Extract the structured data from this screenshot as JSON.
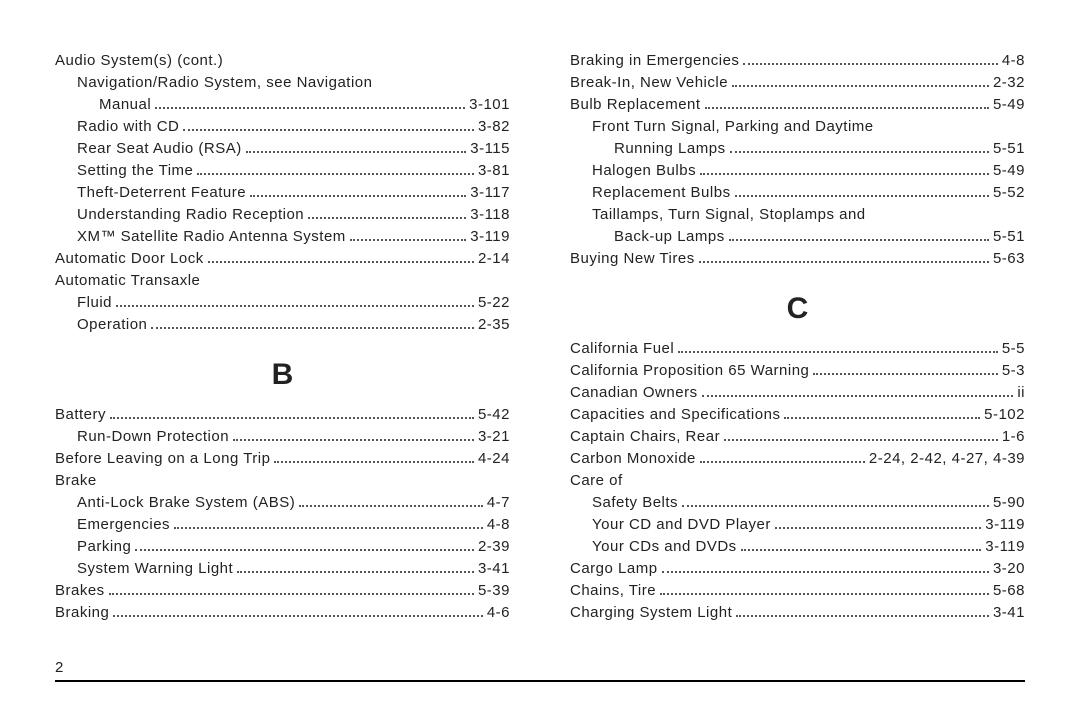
{
  "page_number": "2",
  "left": {
    "entries": [
      {
        "label": "Audio System(s) (cont.)",
        "page": "",
        "indent": 0
      },
      {
        "label": "Navigation/Radio System, see Navigation",
        "page": "",
        "indent": 1
      },
      {
        "label": "Manual",
        "page": "3-101",
        "indent": 2
      },
      {
        "label": "Radio with CD",
        "page": "3-82",
        "indent": 1
      },
      {
        "label": "Rear Seat Audio (RSA)",
        "page": "3-115",
        "indent": 1
      },
      {
        "label": "Setting the Time",
        "page": "3-81",
        "indent": 1
      },
      {
        "label": "Theft-Deterrent Feature",
        "page": "3-117",
        "indent": 1
      },
      {
        "label": "Understanding Radio Reception",
        "page": "3-118",
        "indent": 1
      },
      {
        "label": "XM™ Satellite Radio Antenna System",
        "page": "3-119",
        "indent": 1
      },
      {
        "label": "Automatic Door Lock",
        "page": "2-14",
        "indent": 0
      },
      {
        "label": "Automatic Transaxle",
        "page": "",
        "indent": 0
      },
      {
        "label": "Fluid",
        "page": "5-22",
        "indent": 1
      },
      {
        "label": "Operation",
        "page": "2-35",
        "indent": 1
      }
    ],
    "letter": "B",
    "entries_b": [
      {
        "label": "Battery",
        "page": "5-42",
        "indent": 0
      },
      {
        "label": "Run-Down Protection",
        "page": "3-21",
        "indent": 1
      },
      {
        "label": "Before Leaving on a Long Trip",
        "page": "4-24",
        "indent": 0
      },
      {
        "label": "Brake",
        "page": "",
        "indent": 0
      },
      {
        "label": "Anti-Lock Brake System (ABS)",
        "page": "4-7",
        "indent": 1
      },
      {
        "label": "Emergencies",
        "page": "4-8",
        "indent": 1
      },
      {
        "label": "Parking",
        "page": "2-39",
        "indent": 1
      },
      {
        "label": "System Warning Light",
        "page": "3-41",
        "indent": 1
      },
      {
        "label": "Brakes",
        "page": "5-39",
        "indent": 0
      },
      {
        "label": "Braking",
        "page": "4-6",
        "indent": 0
      }
    ]
  },
  "right": {
    "entries": [
      {
        "label": "Braking in Emergencies",
        "page": "4-8",
        "indent": 0
      },
      {
        "label": "Break-In, New Vehicle",
        "page": "2-32",
        "indent": 0
      },
      {
        "label": "Bulb Replacement",
        "page": "5-49",
        "indent": 0
      },
      {
        "label": "Front Turn Signal, Parking and Daytime",
        "page": "",
        "indent": 1
      },
      {
        "label": "Running Lamps",
        "page": "5-51",
        "indent": 2
      },
      {
        "label": "Halogen Bulbs",
        "page": "5-49",
        "indent": 1
      },
      {
        "label": "Replacement Bulbs",
        "page": "5-52",
        "indent": 1
      },
      {
        "label": "Taillamps, Turn Signal, Stoplamps and",
        "page": "",
        "indent": 1
      },
      {
        "label": "Back-up Lamps",
        "page": "5-51",
        "indent": 2
      },
      {
        "label": "Buying New Tires",
        "page": "5-63",
        "indent": 0
      }
    ],
    "letter": "C",
    "entries_c": [
      {
        "label": "California Fuel",
        "page": "5-5",
        "indent": 0
      },
      {
        "label": "California Proposition 65 Warning",
        "page": "5-3",
        "indent": 0
      },
      {
        "label": "Canadian Owners",
        "page": "ii",
        "indent": 0
      },
      {
        "label": "Capacities and Specifications",
        "page": "5-102",
        "indent": 0
      },
      {
        "label": "Captain Chairs, Rear",
        "page": "1-6",
        "indent": 0
      },
      {
        "label": "Carbon Monoxide",
        "page": "2-24, 2-42, 4-27, 4-39",
        "indent": 0
      },
      {
        "label": "Care of",
        "page": "",
        "indent": 0
      },
      {
        "label": "Safety Belts",
        "page": "5-90",
        "indent": 1
      },
      {
        "label": "Your CD and DVD Player",
        "page": "3-119",
        "indent": 1
      },
      {
        "label": "Your CDs and DVDs",
        "page": "3-119",
        "indent": 1
      },
      {
        "label": "Cargo Lamp",
        "page": "3-20",
        "indent": 0
      },
      {
        "label": "Chains, Tire",
        "page": "5-68",
        "indent": 0
      },
      {
        "label": "Charging System Light",
        "page": "3-41",
        "indent": 0
      }
    ]
  }
}
